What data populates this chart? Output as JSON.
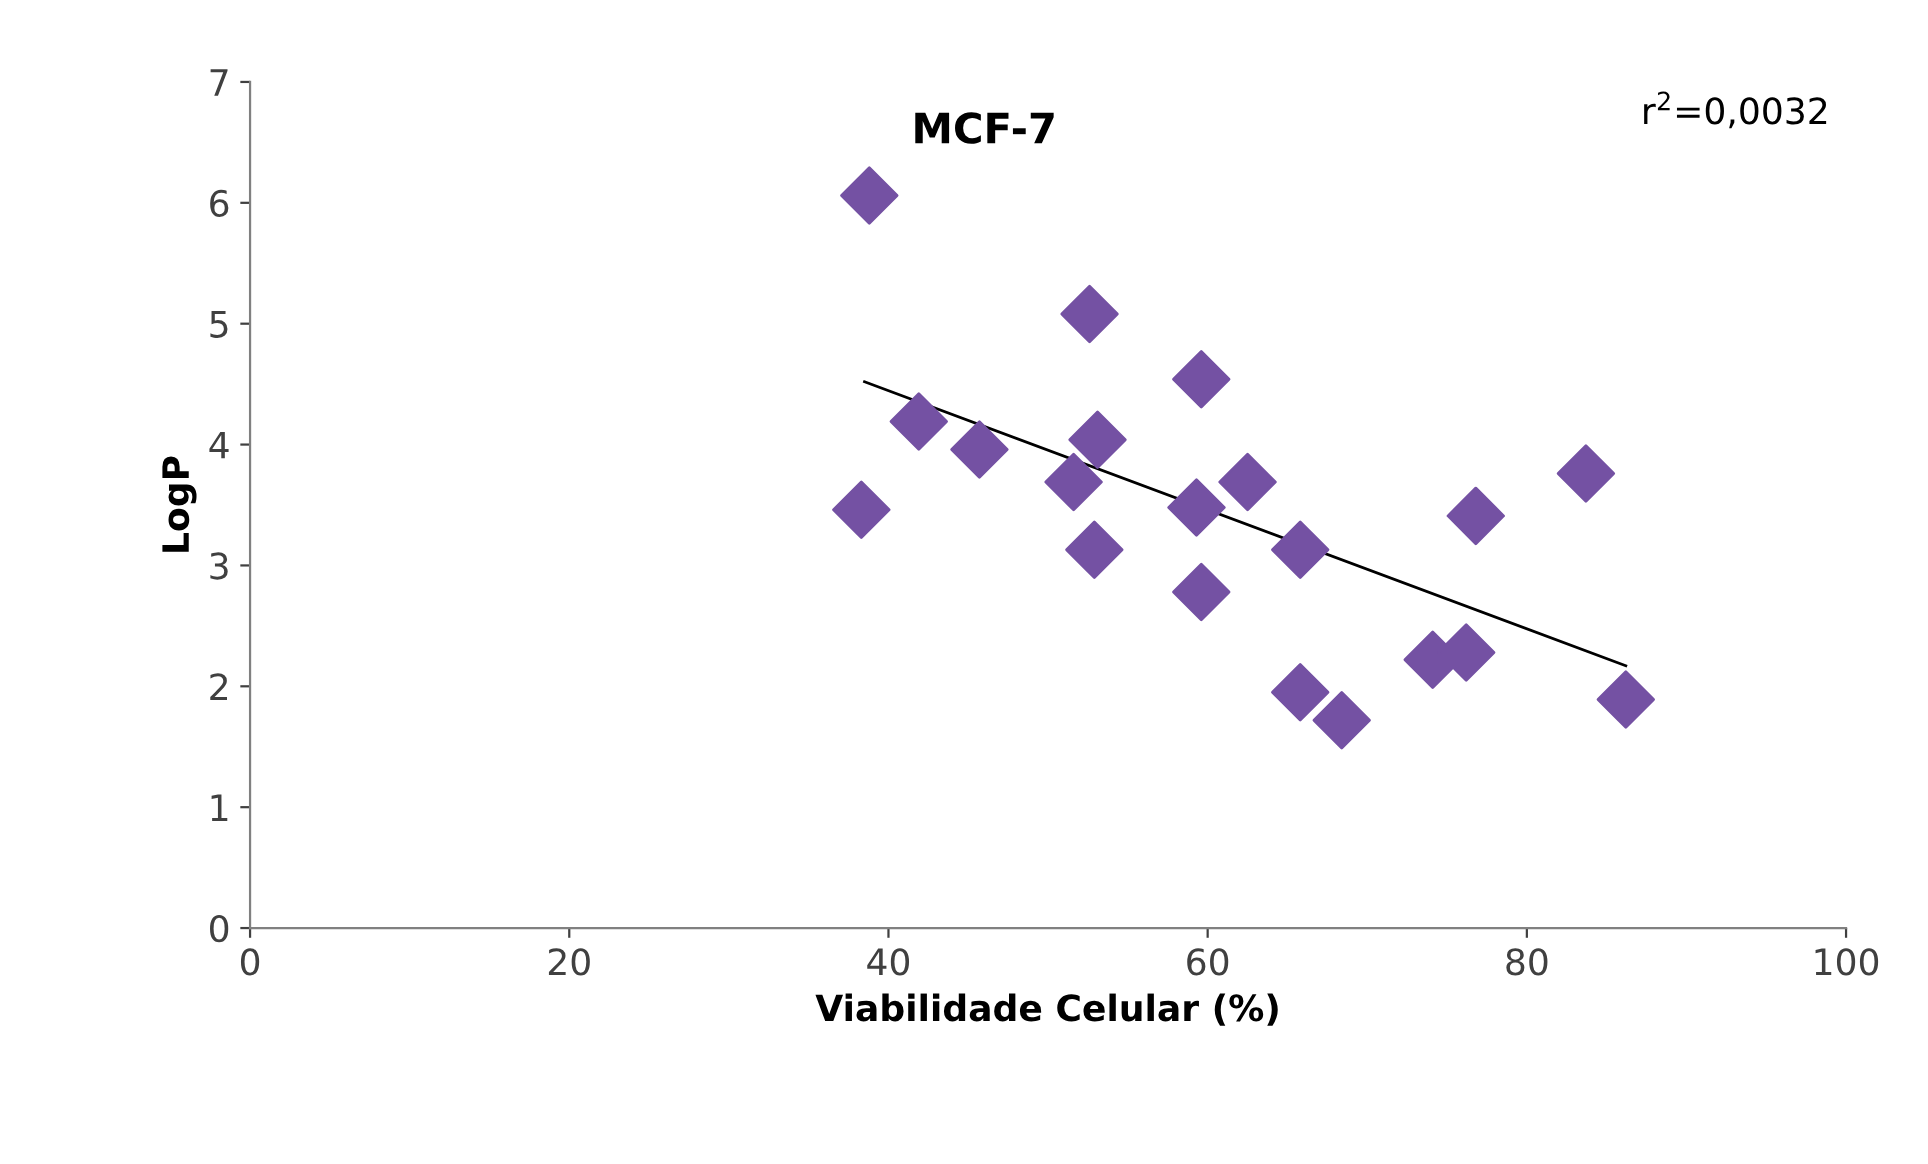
{
  "chart_data": {
    "type": "scatter",
    "title": "MCF-7",
    "xlabel": "Viabilidade Celular (%)",
    "ylabel": "LogP",
    "annotations": [
      "r$^{2}$=0,0032"
    ],
    "xlim": [
      0,
      100
    ],
    "xticks": [
      0,
      20,
      40,
      60,
      80,
      100
    ],
    "ylim": [
      0,
      7
    ],
    "yticks": [
      0,
      1,
      2,
      3,
      4,
      5,
      6,
      7
    ],
    "grid": false,
    "legend": false,
    "marker": "diamond",
    "series": [
      {
        "color": "#7451a3",
        "x": [
          38.8,
          38.3,
          41.9,
          45.7,
          52.6,
          51.6,
          53.1,
          52.9,
          59.6,
          59.3,
          59.6,
          62.5,
          65.8,
          65.8,
          68.4,
          74.1,
          76.2,
          76.8,
          83.7,
          86.2
        ],
        "values": [
          6.06,
          3.46,
          4.19,
          3.96,
          5.08,
          3.69,
          4.04,
          3.13,
          4.54,
          3.48,
          2.78,
          3.69,
          3.13,
          1.95,
          1.72,
          2.22,
          2.28,
          3.41,
          3.76,
          1.89
        ]
      },
      {
        "type": "line",
        "color": "#000000",
        "marker": "none",
        "x": [
          38.5,
          86.2
        ],
        "values": [
          4.52,
          2.17
        ]
      }
    ]
  }
}
